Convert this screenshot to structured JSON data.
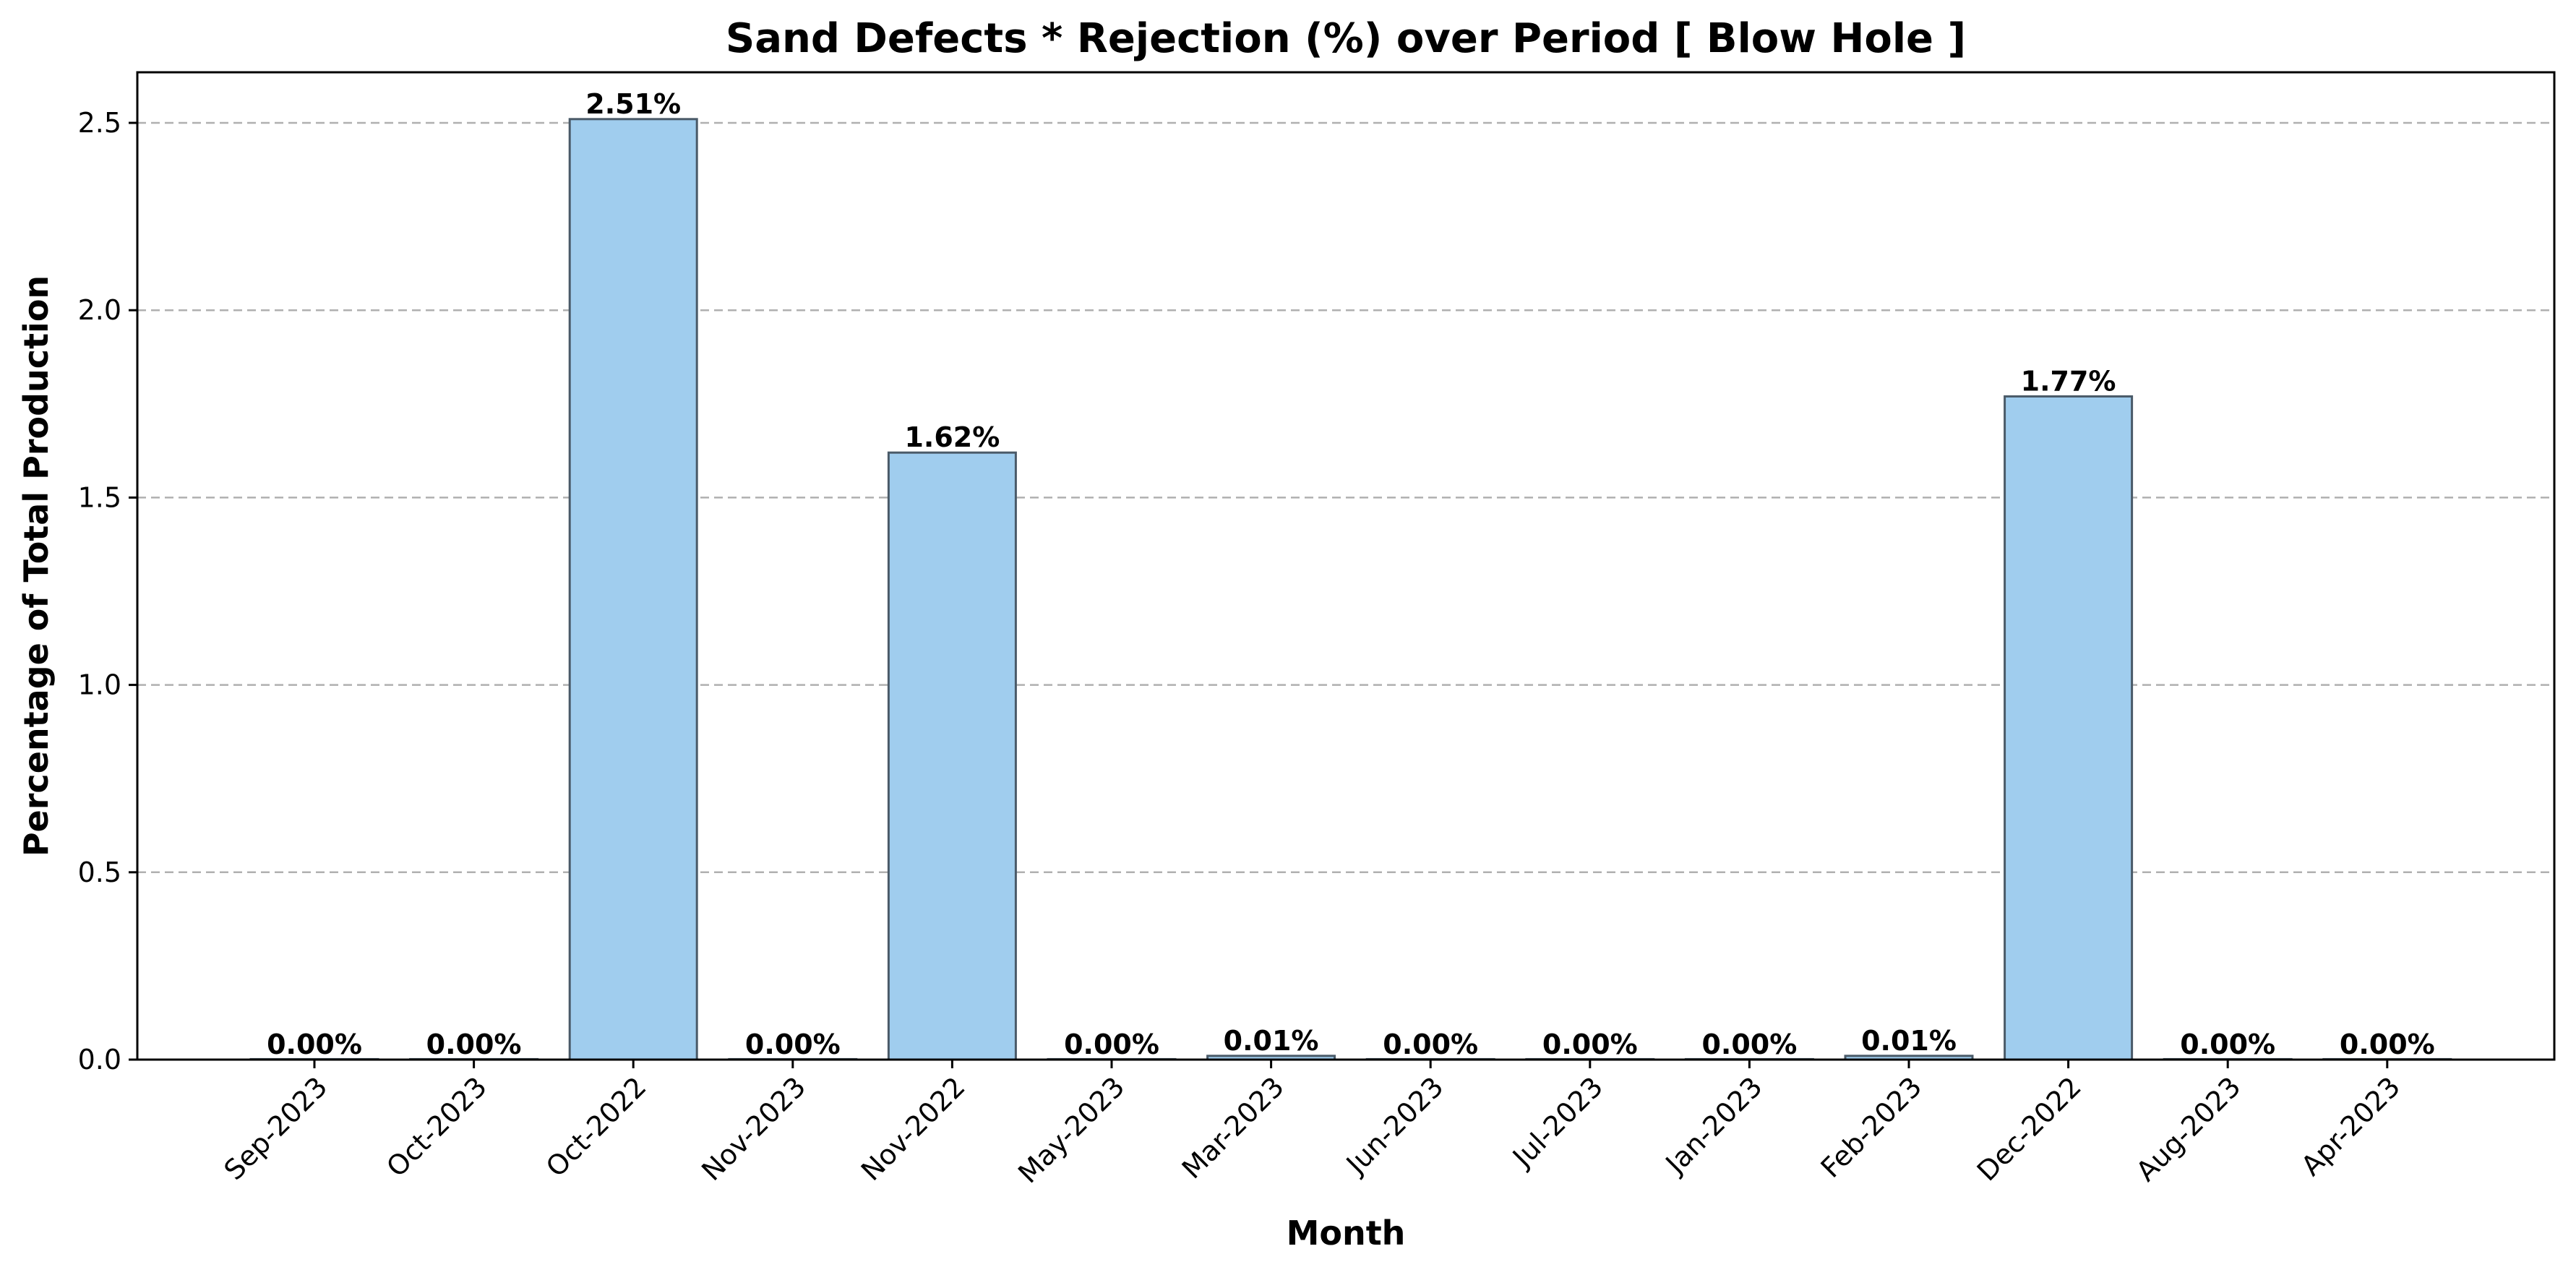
{
  "chart_data": {
    "type": "bar",
    "title": "Sand Defects * Rejection (%) over Period [ Blow Hole ]",
    "xlabel": "Month",
    "ylabel": "Percentage of Total Production",
    "categories": [
      "Sep-2023",
      "Oct-2023",
      "Oct-2022",
      "Nov-2023",
      "Nov-2022",
      "May-2023",
      "Mar-2023",
      "Jun-2023",
      "Jul-2023",
      "Jan-2023",
      "Feb-2023",
      "Dec-2022",
      "Aug-2023",
      "Apr-2023"
    ],
    "values": [
      0.0,
      0.0,
      2.51,
      0.0,
      1.62,
      0.0,
      0.01,
      0.0,
      0.0,
      0.0,
      0.01,
      1.77,
      0.0,
      0.0
    ],
    "data_labels": [
      "0.00%",
      "0.00%",
      "2.51%",
      "0.00%",
      "1.62%",
      "0.00%",
      "0.01%",
      "0.00%",
      "0.00%",
      "0.00%",
      "0.01%",
      "1.77%",
      "0.00%",
      "0.00%"
    ],
    "yticks": [
      "0.0",
      "0.5",
      "1.0",
      "1.5",
      "2.0",
      "2.5"
    ],
    "ylim": [
      0,
      2.635
    ],
    "grid": "y-dashed",
    "bar_color": "#a0cdee",
    "edge_color": "#4a5a68"
  }
}
